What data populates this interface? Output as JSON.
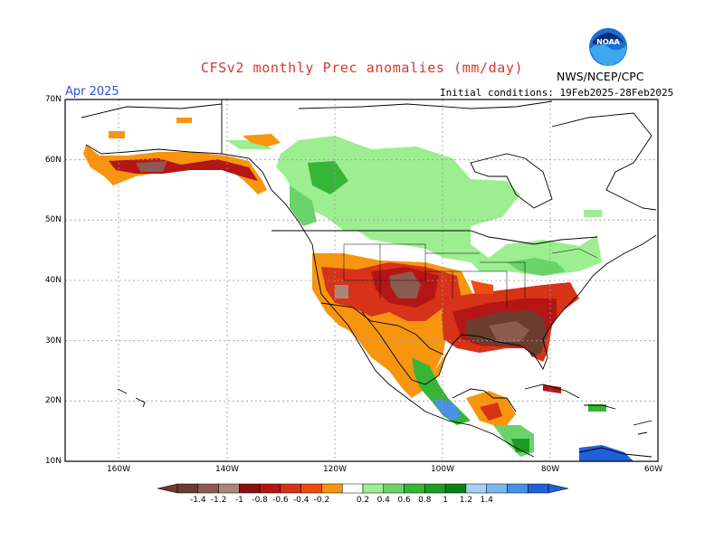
{
  "header": {
    "title": "CFSv2 monthly Prec anomalies (mm/day)",
    "month": "Apr 2025",
    "initial_conditions": "Initial conditions: 19Feb2025-28Feb2025",
    "org": "NWS/NCEP/CPC",
    "logo_text": "NOAA"
  },
  "axes": {
    "lat_labels": [
      "70N",
      "60N",
      "50N",
      "40N",
      "30N",
      "20N",
      "10N"
    ],
    "lon_labels": [
      "160W",
      "140W",
      "120W",
      "100W",
      "80W",
      "60W"
    ]
  },
  "colorbar": {
    "labels": [
      "-1.4",
      "-1.2",
      "-1",
      "-0.8",
      "-0.6",
      "-0.4",
      "-0.2",
      "0.2",
      "0.4",
      "0.6",
      "0.8",
      "1",
      "1.2",
      "1.4"
    ],
    "colors": [
      "#6b3d2e",
      "#8c5a4e",
      "#ad8578",
      "#8b0f0f",
      "#b51515",
      "#d63318",
      "#f04c0c",
      "#f7950f",
      "#ffffff",
      "#9cee90",
      "#6ad36a",
      "#36b536",
      "#1e9b22",
      "#0f7f17",
      "#a7d0f7",
      "#7ab6f3",
      "#4a90e8",
      "#2060d8"
    ]
  },
  "colors": {
    "dry_extreme": "#6b3d2e",
    "dry_strong": "#8b0f0f",
    "dry_moderate": "#d63318",
    "dry_light": "#f7950f",
    "wet_light": "#9cee90",
    "wet_moderate": "#36b536",
    "wet_strong": "#1e9b22",
    "very_wet": "#2060d8"
  }
}
